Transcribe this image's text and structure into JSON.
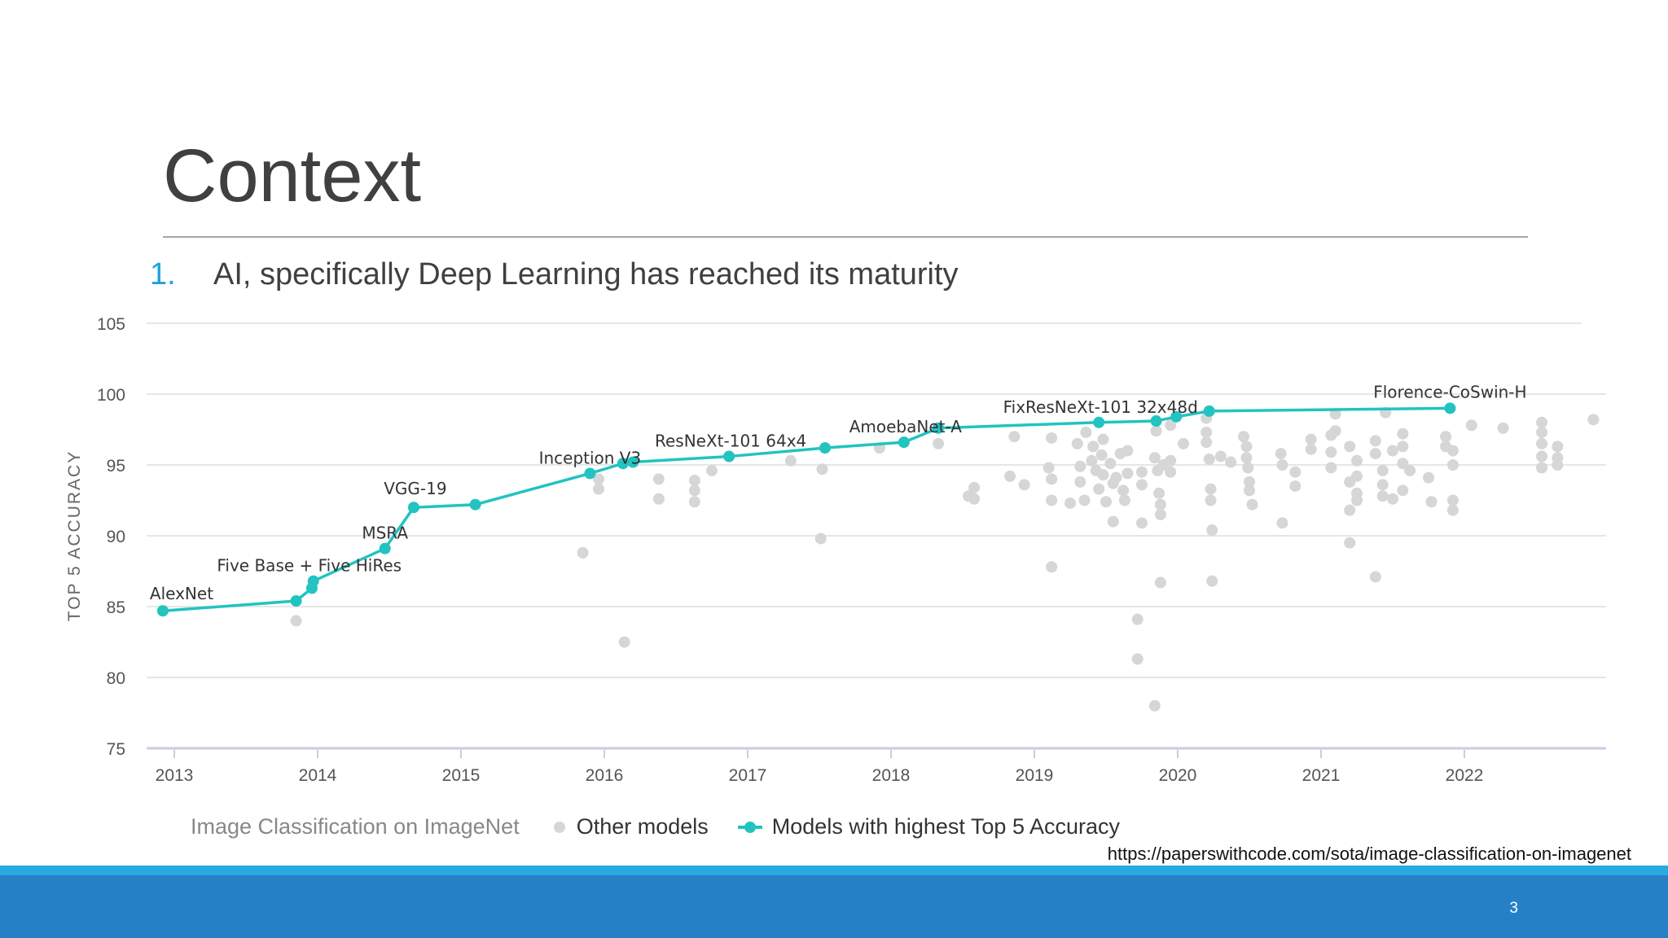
{
  "slide": {
    "title": "Context",
    "bullet_number": "1.",
    "bullet_text": "AI, specifically Deep Learning has reached its maturity",
    "source_url": "https://paperswithcode.com/sota/image-classification-on-imagenet",
    "page_number": "3"
  },
  "legend": {
    "dataset": "Image Classification on ImageNet",
    "other": "Other models",
    "best": "Models with highest Top 5 Accuracy"
  },
  "colors": {
    "accent": "#22c3c0",
    "other": "#d6d6d6",
    "footer": "#2680c6",
    "footer_top": "#29a9e1"
  },
  "chart_data": {
    "type": "scatter",
    "title": "Image Classification on ImageNet",
    "xlabel": "",
    "ylabel": "TOP 5 ACCURACY",
    "xlim": [
      2012.9,
      2023.0
    ],
    "ylim": [
      75,
      105
    ],
    "yticks": [
      75,
      80,
      85,
      90,
      95,
      100,
      105
    ],
    "xticks": [
      2013,
      2014,
      2015,
      2016,
      2017,
      2018,
      2019,
      2020,
      2021,
      2022
    ],
    "grid": true,
    "series": [
      {
        "name": "Models with highest Top 5 Accuracy",
        "kind": "line",
        "points": [
          [
            2012.92,
            84.7
          ],
          [
            2013.85,
            85.4
          ],
          [
            2013.96,
            86.3
          ],
          [
            2013.97,
            86.8
          ],
          [
            2014.47,
            89.1
          ],
          [
            2014.67,
            92.0
          ],
          [
            2015.1,
            92.2
          ],
          [
            2015.9,
            94.4
          ],
          [
            2016.13,
            95.1
          ],
          [
            2016.2,
            95.2
          ],
          [
            2016.87,
            95.6
          ],
          [
            2017.54,
            96.2
          ],
          [
            2018.09,
            96.6
          ],
          [
            2018.33,
            97.6
          ],
          [
            2019.45,
            98.0
          ],
          [
            2019.85,
            98.1
          ],
          [
            2019.99,
            98.4
          ],
          [
            2020.22,
            98.8
          ],
          [
            2021.9,
            99.0
          ]
        ],
        "labels": [
          {
            "text": "AlexNet",
            "x": 2012.92,
            "y": 84.7
          },
          {
            "text": "Five Base + Five HiRes",
            "x": 2013.97,
            "y": 86.8
          },
          {
            "text": "MSRA",
            "x": 2014.47,
            "y": 89.1
          },
          {
            "text": "VGG-19",
            "x": 2014.67,
            "y": 92.0
          },
          {
            "text": "Inception V3",
            "x": 2015.9,
            "y": 94.4
          },
          {
            "text": "ResNeXt-101 64x4",
            "x": 2016.87,
            "y": 95.6
          },
          {
            "text": "AmoebaNet-A",
            "x": 2018.09,
            "y": 96.6
          },
          {
            "text": "FixResNeXt-101 32x48d",
            "x": 2019.45,
            "y": 98.0
          },
          {
            "text": "Florence-CoSwin-H",
            "x": 2021.9,
            "y": 99.0
          }
        ]
      },
      {
        "name": "Other models",
        "kind": "scatter",
        "points": [
          [
            2013.85,
            84.0
          ],
          [
            2015.85,
            88.8
          ],
          [
            2015.96,
            93.3
          ],
          [
            2015.96,
            94.0
          ],
          [
            2016.14,
            82.5
          ],
          [
            2016.38,
            94.0
          ],
          [
            2016.38,
            92.6
          ],
          [
            2016.63,
            93.9
          ],
          [
            2016.63,
            93.2
          ],
          [
            2016.63,
            92.4
          ],
          [
            2016.75,
            94.6
          ],
          [
            2017.3,
            95.3
          ],
          [
            2017.52,
            94.7
          ],
          [
            2017.51,
            89.8
          ],
          [
            2017.92,
            96.2
          ],
          [
            2018.33,
            96.5
          ],
          [
            2018.54,
            92.8
          ],
          [
            2018.58,
            93.4
          ],
          [
            2018.58,
            92.6
          ],
          [
            2018.83,
            94.2
          ],
          [
            2018.86,
            97.0
          ],
          [
            2018.93,
            93.6
          ],
          [
            2019.1,
            94.8
          ],
          [
            2019.12,
            96.9
          ],
          [
            2019.12,
            94.0
          ],
          [
            2019.12,
            92.5
          ],
          [
            2019.12,
            87.8
          ],
          [
            2019.25,
            92.3
          ],
          [
            2019.3,
            96.5
          ],
          [
            2019.32,
            94.9
          ],
          [
            2019.32,
            93.8
          ],
          [
            2019.35,
            92.5
          ],
          [
            2019.36,
            97.3
          ],
          [
            2019.4,
            95.3
          ],
          [
            2019.41,
            96.3
          ],
          [
            2019.43,
            94.6
          ],
          [
            2019.45,
            93.3
          ],
          [
            2019.47,
            95.7
          ],
          [
            2019.48,
            96.8
          ],
          [
            2019.48,
            94.3
          ],
          [
            2019.5,
            92.4
          ],
          [
            2019.53,
            95.1
          ],
          [
            2019.55,
            93.7
          ],
          [
            2019.55,
            91.0
          ],
          [
            2019.57,
            94.1
          ],
          [
            2019.6,
            95.8
          ],
          [
            2019.62,
            93.2
          ],
          [
            2019.63,
            92.5
          ],
          [
            2019.65,
            96.0
          ],
          [
            2019.65,
            94.4
          ],
          [
            2019.72,
            84.1
          ],
          [
            2019.72,
            81.3
          ],
          [
            2019.75,
            94.5
          ],
          [
            2019.75,
            93.6
          ],
          [
            2019.75,
            90.9
          ],
          [
            2019.84,
            95.5
          ],
          [
            2019.84,
            78.0
          ],
          [
            2019.85,
            97.4
          ],
          [
            2019.86,
            94.6
          ],
          [
            2019.87,
            93.0
          ],
          [
            2019.88,
            92.2
          ],
          [
            2019.88,
            91.5
          ],
          [
            2019.88,
            86.7
          ],
          [
            2019.9,
            95.0
          ],
          [
            2019.95,
            97.8
          ],
          [
            2019.95,
            95.3
          ],
          [
            2019.95,
            94.5
          ],
          [
            2020.04,
            96.5
          ],
          [
            2020.2,
            98.3
          ],
          [
            2020.2,
            97.3
          ],
          [
            2020.2,
            96.6
          ],
          [
            2020.22,
            95.4
          ],
          [
            2020.23,
            93.3
          ],
          [
            2020.23,
            92.5
          ],
          [
            2020.24,
            90.4
          ],
          [
            2020.24,
            86.8
          ],
          [
            2020.3,
            95.6
          ],
          [
            2020.37,
            95.2
          ],
          [
            2020.46,
            97.0
          ],
          [
            2020.48,
            96.3
          ],
          [
            2020.48,
            95.5
          ],
          [
            2020.49,
            94.8
          ],
          [
            2020.5,
            93.8
          ],
          [
            2020.5,
            93.2
          ],
          [
            2020.52,
            92.2
          ],
          [
            2020.72,
            95.8
          ],
          [
            2020.73,
            95.0
          ],
          [
            2020.73,
            90.9
          ],
          [
            2020.82,
            94.5
          ],
          [
            2020.82,
            93.5
          ],
          [
            2020.93,
            96.8
          ],
          [
            2020.93,
            96.1
          ],
          [
            2021.07,
            97.1
          ],
          [
            2021.07,
            95.9
          ],
          [
            2021.07,
            94.8
          ],
          [
            2021.1,
            98.6
          ],
          [
            2021.1,
            97.4
          ],
          [
            2021.2,
            96.3
          ],
          [
            2021.2,
            93.8
          ],
          [
            2021.2,
            91.8
          ],
          [
            2021.2,
            89.5
          ],
          [
            2021.25,
            95.3
          ],
          [
            2021.25,
            94.2
          ],
          [
            2021.25,
            93.0
          ],
          [
            2021.25,
            92.5
          ],
          [
            2021.38,
            96.7
          ],
          [
            2021.38,
            95.8
          ],
          [
            2021.38,
            87.1
          ],
          [
            2021.43,
            94.6
          ],
          [
            2021.43,
            93.6
          ],
          [
            2021.43,
            92.8
          ],
          [
            2021.45,
            98.7
          ],
          [
            2021.5,
            96.0
          ],
          [
            2021.5,
            92.6
          ],
          [
            2021.57,
            97.2
          ],
          [
            2021.57,
            96.3
          ],
          [
            2021.57,
            95.1
          ],
          [
            2021.57,
            93.2
          ],
          [
            2021.62,
            94.6
          ],
          [
            2021.75,
            94.1
          ],
          [
            2021.77,
            92.4
          ],
          [
            2021.87,
            97.0
          ],
          [
            2021.87,
            96.3
          ],
          [
            2021.92,
            96.0
          ],
          [
            2021.92,
            95.0
          ],
          [
            2021.92,
            92.5
          ],
          [
            2021.92,
            91.8
          ],
          [
            2022.05,
            97.8
          ],
          [
            2022.27,
            97.6
          ],
          [
            2022.54,
            98.0
          ],
          [
            2022.54,
            97.3
          ],
          [
            2022.54,
            96.5
          ],
          [
            2022.54,
            95.6
          ],
          [
            2022.54,
            94.8
          ],
          [
            2022.65,
            96.3
          ],
          [
            2022.65,
            95.5
          ],
          [
            2022.65,
            95.0
          ],
          [
            2022.9,
            98.2
          ]
        ]
      }
    ]
  }
}
